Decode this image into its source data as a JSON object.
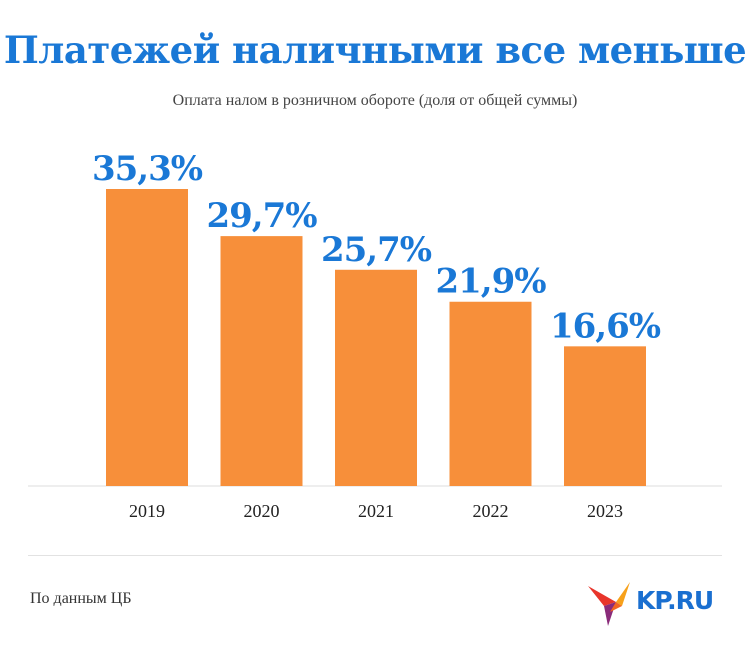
{
  "header": {
    "title": "Платежей наличными все меньше",
    "subtitle": "Оплата налом в розничном обороте (доля от общей суммы)"
  },
  "footer": {
    "source": "По данным ЦБ",
    "logo_text": "KP.RU"
  },
  "colors": {
    "bar": "#f78f3a",
    "value_label": "#1a78d6",
    "axis": "#dddddd",
    "tick_label": "#222222"
  },
  "chart_data": {
    "type": "bar",
    "categories": [
      "2019",
      "2020",
      "2021",
      "2022",
      "2023"
    ],
    "values": [
      35.3,
      29.7,
      25.7,
      21.9,
      16.6
    ],
    "value_labels": [
      "35,3%",
      "29,7%",
      "25,7%",
      "21,9%",
      "16,6%"
    ],
    "title": "Платежей наличными все меньше",
    "subtitle": "Оплата налом в розничном обороте (доля от общей суммы)",
    "xlabel": "",
    "ylabel": "",
    "ylim": [
      0,
      35.3
    ],
    "grid": false,
    "legend": "none"
  }
}
